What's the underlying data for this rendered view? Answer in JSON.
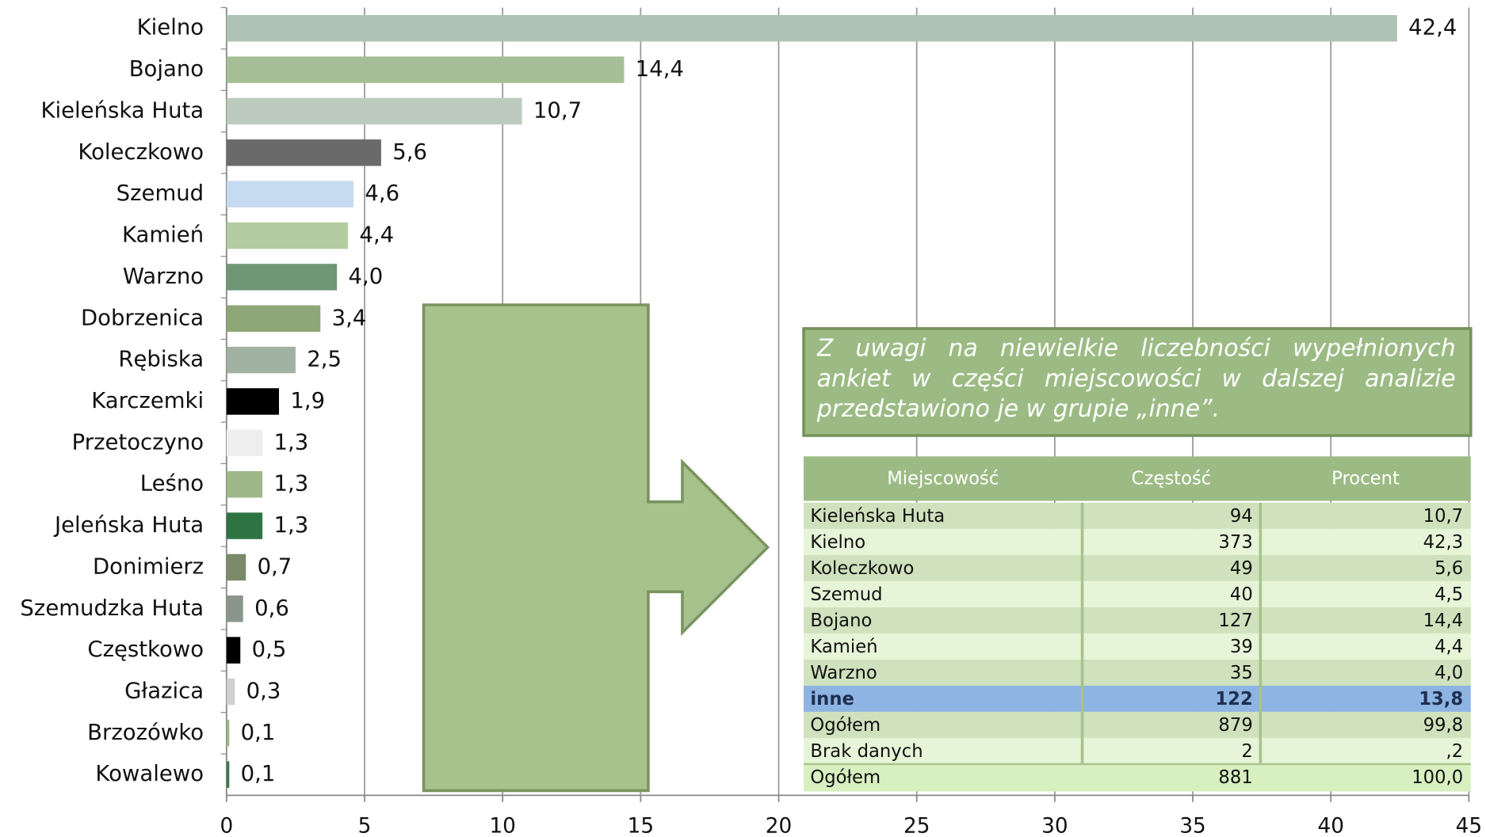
{
  "chart_data": {
    "type": "bar",
    "orientation": "horizontal",
    "categories": [
      "Kielno",
      "Bojano",
      "Kieleńska Huta",
      "Koleczkowo",
      "Szemud",
      "Kamień",
      "Warzno",
      "Dobrzenica",
      "Rębiska",
      "Karczemki",
      "Przetoczyno",
      "Leśno",
      "Jeleńska Huta",
      "Donimierz",
      "Szemudzka Huta",
      "Częstkowo",
      "Głazica",
      "Brzozówko",
      "Kowalewo"
    ],
    "values": [
      42.4,
      14.4,
      10.7,
      5.6,
      4.6,
      4.4,
      4.0,
      3.4,
      2.5,
      1.9,
      1.3,
      1.3,
      1.3,
      0.7,
      0.6,
      0.5,
      0.3,
      0.1,
      0.1
    ],
    "value_labels": [
      "42,4",
      "14,4",
      "10,7",
      "5,6",
      "4,6",
      "4,4",
      "4,0",
      "3,4",
      "2,5",
      "1,9",
      "1,3",
      "1,3",
      "1,3",
      "0,7",
      "0,6",
      "0,5",
      "0,3",
      "0,1",
      "0,1"
    ],
    "colors": [
      "#aec3b3",
      "#a7bf97",
      "#bccbbd",
      "#6a6a6a",
      "#c6daf0",
      "#b5cca2",
      "#6f9776",
      "#8ea776",
      "#a1b1a2",
      "#000000",
      "#eeeeee",
      "#9fb889",
      "#2e7443",
      "#7a8a6a",
      "#8b968b",
      "#000000",
      "#d0d0d0",
      "#9ab88a",
      "#3a7a4a"
    ],
    "xlim": [
      0,
      45
    ],
    "xticks": [
      0,
      5,
      10,
      15,
      20,
      25,
      30,
      35,
      40,
      45
    ],
    "grid": true
  },
  "note": "Z uwagi na niewielkie liczebności wypełnionych ankiet w części miejscowości w dalszej analizie przedstawiono je w grupie „inne”.",
  "table": {
    "header": [
      "Miejscowość",
      "Częstość",
      "Procent"
    ],
    "rows": [
      [
        "Kieleńska Huta",
        94,
        "10,7"
      ],
      [
        "Kielno",
        373,
        "42,3"
      ],
      [
        "Koleczkowo",
        49,
        "5,6"
      ],
      [
        "Szemud",
        40,
        "4,5"
      ],
      [
        "Bojano",
        127,
        "14,4"
      ],
      [
        "Kamień",
        39,
        "4,4"
      ],
      [
        "Warzno",
        35,
        "4,0"
      ],
      [
        "inne",
        122,
        "13,8"
      ],
      [
        "Ogółem",
        879,
        "99,8"
      ],
      [
        "Brak danych",
        2,
        ",2"
      ],
      [
        "Ogółem",
        881,
        "100,0"
      ]
    ]
  }
}
